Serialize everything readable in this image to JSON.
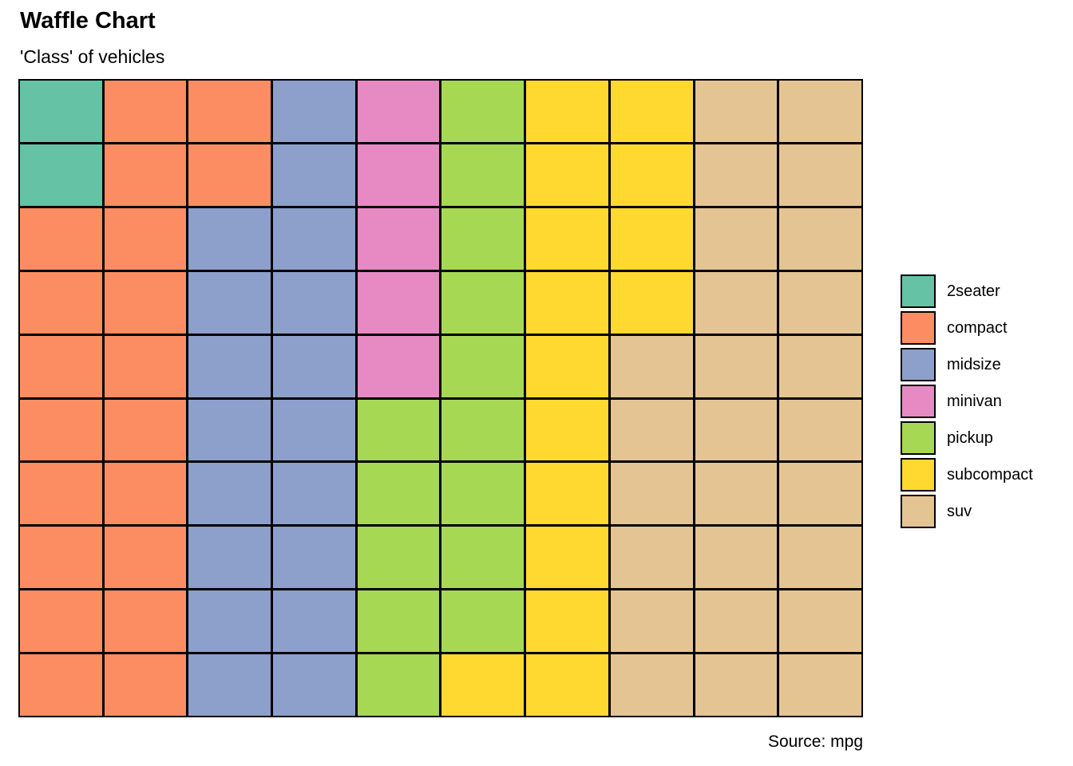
{
  "header": {
    "title": "Waffle Chart",
    "subtitle": "'Class' of vehicles"
  },
  "caption": "Source: mpg",
  "chart_data": {
    "type": "waffle",
    "title": "Waffle Chart",
    "subtitle": "'Class' of vehicles",
    "source": "Source: mpg",
    "rows": 10,
    "cols": 10,
    "total_cells": 100,
    "fill_order": "column-major, top-to-bottom, left-to-right",
    "legend_position": "right",
    "grid_line_color": "#000000",
    "categories": [
      {
        "label": "2seater",
        "color": "#66C2A5",
        "cells": 2
      },
      {
        "label": "compact",
        "color": "#FC8D62",
        "cells": 20
      },
      {
        "label": "midsize",
        "color": "#8DA0CB",
        "cells": 18
      },
      {
        "label": "minivan",
        "color": "#E78AC3",
        "cells": 5
      },
      {
        "label": "pickup",
        "color": "#A6D854",
        "cells": 14
      },
      {
        "label": "subcompact",
        "color": "#FFD92F",
        "cells": 15
      },
      {
        "label": "suv",
        "color": "#E5C494",
        "cells": 26
      }
    ]
  }
}
